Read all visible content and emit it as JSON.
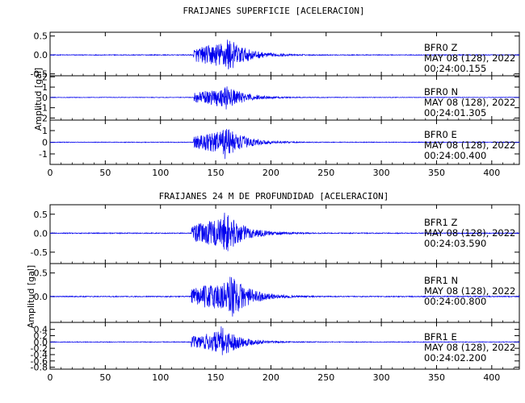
{
  "chart_data": [
    {
      "type": "line",
      "title": "FRAIJANES SUPERFICIE [ACELERACION]",
      "ylabel": "Amplitud [gal]",
      "xlabel": "",
      "xlim": [
        0,
        425
      ],
      "x_ticks": [
        0,
        50,
        100,
        150,
        200,
        250,
        300,
        350,
        400
      ],
      "panels": [
        {
          "station": "BFR0   Z",
          "date": "MAY 08 (128), 2022",
          "time": "00:24:00.155",
          "ylim": [
            -0.55,
            0.6
          ],
          "y_ticks": [
            -0.5,
            0.0,
            0.5
          ],
          "y_tick_labels": [
            "-0.5",
            "0.0",
            "0.5"
          ],
          "signal": {
            "onset": 130,
            "peak_time": 160,
            "peak_amp": 0.5,
            "coda_end": 250
          }
        },
        {
          "station": "BFR0   N",
          "date": "MAY 08 (128), 2022",
          "time": "00:24:01.305",
          "ylim": [
            -2.2,
            2.1
          ],
          "y_ticks": [
            -2,
            -1,
            0,
            1,
            2
          ],
          "y_tick_labels": [
            "-2",
            "-1",
            "0",
            "1",
            "2"
          ],
          "signal": {
            "onset": 130,
            "peak_time": 158,
            "peak_amp": 1.3,
            "coda_end": 250
          }
        },
        {
          "station": "BFR0   E",
          "date": "MAY 08 (128), 2022",
          "time": "00:24:00.400",
          "ylim": [
            -1.9,
            1.9
          ],
          "y_ticks": [
            -1,
            0,
            1
          ],
          "y_tick_labels": [
            "-1",
            "0",
            "1"
          ],
          "signal": {
            "onset": 130,
            "peak_time": 158,
            "peak_amp": 1.5,
            "coda_end": 250
          }
        }
      ]
    },
    {
      "type": "line",
      "title": "FRAIJANES 24 M DE PROFUNDIDAD [ACELERACION]",
      "ylabel": "Amplitud [gal]",
      "xlabel": "",
      "xlim": [
        0,
        425
      ],
      "x_ticks": [
        0,
        50,
        100,
        150,
        200,
        250,
        300,
        350,
        400
      ],
      "panels": [
        {
          "station": "BFR1   Z",
          "date": "MAY 08 (128), 2022",
          "time": "00:24:03.590",
          "ylim": [
            -0.8,
            0.75
          ],
          "y_ticks": [
            -0.5,
            0.0,
            0.5
          ],
          "y_tick_labels": [
            "-0.5",
            "0.0",
            "0.5"
          ],
          "signal": {
            "onset": 128,
            "peak_time": 158,
            "peak_amp": 0.6,
            "coda_end": 250
          }
        },
        {
          "station": "BFR1   N",
          "date": "MAY 08 (128), 2022",
          "time": "00:24:00.800",
          "ylim": [
            -0.55,
            0.7
          ],
          "y_ticks": [
            0.0,
            0.5
          ],
          "y_tick_labels": [
            "0.0",
            "0.5"
          ],
          "signal": {
            "onset": 128,
            "peak_time": 163,
            "peak_amp": 0.5,
            "coda_end": 250
          }
        },
        {
          "station": "BFR1   E",
          "date": "MAY 08 (128), 2022",
          "time": "00:24:02.200",
          "ylim": [
            -0.86,
            0.62
          ],
          "y_ticks": [
            -0.8,
            -0.6,
            -0.4,
            -0.2,
            0.0,
            0.2,
            0.4
          ],
          "y_tick_labels": [
            "-0.8",
            "-0.6",
            "-0.4",
            "-0.2",
            "0.0",
            "0.2",
            "0.4"
          ],
          "signal": {
            "onset": 128,
            "peak_time": 155,
            "peak_amp": 0.5,
            "coda_end": 250
          }
        }
      ]
    }
  ],
  "colors": {
    "trace": "#0000ee",
    "frame": "#000000",
    "background": "#ffffff"
  }
}
